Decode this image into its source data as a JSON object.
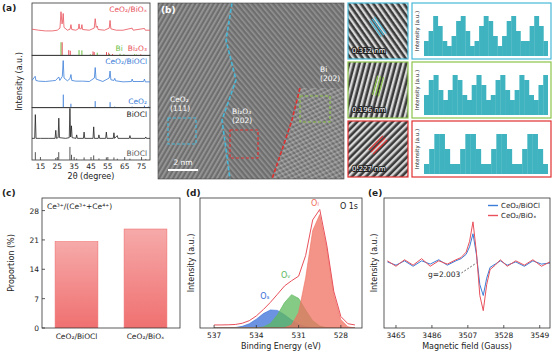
{
  "chart_data": [
    {
      "type": "line",
      "panel_label": "(a)",
      "x_label": "2θ (degree)",
      "y_label": "Intensity (a.u.)",
      "xlim": [
        10,
        80
      ],
      "xticks": [
        15,
        25,
        35,
        45,
        55,
        65,
        75
      ],
      "tick_labels": "x",
      "stacks": [
        {
          "ylim": [
            -50,
            100
          ],
          "y2lim": [
            0,
            400
          ],
          "series": [
            {
              "name": "CeO₂/BiOₓ",
              "color": "#e8505b",
              "x": [
                10,
                14,
                18,
                22,
                25,
                26.6,
                27.2,
                27.8,
                28.1,
                28.5,
                29,
                31,
                32.6,
                33.1,
                33.6,
                36,
                37.5,
                37.9,
                38.3,
                39.2,
                39.6,
                40,
                44,
                46.9,
                47.5,
                48.1,
                48.7,
                49.2,
                53,
                55.8,
                56.3,
                56.8,
                60,
                64,
                69.4,
                70,
                76.7,
                77.2,
                80
              ],
              "values": [
                25,
                22,
                20,
                20,
                22,
                28,
                75,
                40,
                45,
                70,
                30,
                22,
                25,
                38,
                24,
                22,
                26,
                40,
                26,
                26,
                38,
                24,
                22,
                28,
                55,
                30,
                34,
                24,
                22,
                28,
                50,
                26,
                22,
                22,
                28,
                22,
                27,
                22,
                22
              ]
            },
            {
              "name": "Bi",
              "type": "stick",
              "axis": "y2",
              "color": "#6cbf3f",
              "x": [
                27.2,
                37.9,
                39.6,
                44.6,
                46.0,
                48.7,
                56.0,
                62.2,
                64.5,
                70.8,
                71.9
              ],
              "values": [
                100,
                40,
                38,
                8,
                6,
                20,
                10,
                12,
                8,
                8,
                6
              ]
            },
            {
              "name": "Bi₂O₃",
              "type": "stick",
              "axis": "y2",
              "color": "#e8505b",
              "x": [
                27.9,
                31.8,
                32.7,
                46.2,
                46.9,
                54.2,
                55.5,
                57.8,
                74.5
              ],
              "values": [
                100,
                40,
                35,
                30,
                25,
                25,
                20,
                10,
                8
              ]
            }
          ]
        },
        {
          "ylim": [
            -50,
            100
          ],
          "y2lim": [
            0,
            400
          ],
          "series": [
            {
              "name": "CeO₂/BiOCl",
              "color": "#3b7dd8",
              "x": [
                10,
                11.9,
                12.3,
                14,
                18,
                22,
                24,
                25.9,
                26.5,
                28,
                28.5,
                29,
                31,
                32.5,
                33.1,
                33.6,
                36,
                40,
                44,
                47,
                47.5,
                48,
                52,
                55.8,
                56.3,
                56.8,
                58.6,
                59.1,
                59.6,
                64,
                69,
                69.4,
                69.9,
                76.2,
                76.7,
                77.2,
                80
              ],
              "values": [
                28,
                40,
                28,
                26,
                25,
                27,
                28,
                38,
                28,
                40,
                85,
                35,
                27,
                33,
                45,
                28,
                26,
                26,
                25,
                35,
                65,
                32,
                25,
                35,
                55,
                30,
                28,
                34,
                27,
                24,
                25,
                32,
                25,
                25,
                32,
                24,
                24
              ]
            },
            {
              "name": "CeO₂",
              "type": "stick",
              "axis": "y2",
              "color": "#3b7dd8",
              "x": [
                28.55,
                33.08,
                47.48,
                56.33,
                59.09,
                69.42,
                76.7,
                79.07
              ],
              "values": [
                100,
                30,
                50,
                42,
                8,
                8,
                15,
                8
              ]
            }
          ]
        },
        {
          "ylim": [
            -50,
            100
          ],
          "y2lim": [
            0,
            400
          ],
          "series": [
            {
              "name": "BiOCl",
              "color": "#222222",
              "x": [
                10,
                11.6,
                11.98,
                12.4,
                15,
                20,
                23.7,
                24.1,
                24.5,
                25.5,
                25.9,
                26.3,
                30,
                32.1,
                32.5,
                32.9,
                33.4,
                33.8,
                36.1,
                36.5,
                36.9,
                40.5,
                40.9,
                41.3,
                46.2,
                46.6,
                47,
                49.3,
                49.7,
                50.1,
                53.7,
                54.1,
                54.5,
                58.2,
                58.6,
                59,
                60.6,
                61,
                67.7,
                68.1,
                68.5,
                77.1,
                77.5,
                77.9,
                80
              ],
              "values": [
                12,
                12,
                80,
                12,
                12,
                12,
                12,
                35,
                12,
                14,
                70,
                14,
                12,
                14,
                98,
                16,
                48,
                14,
                12,
                22,
                12,
                12,
                30,
                12,
                12,
                45,
                12,
                12,
                22,
                12,
                12,
                30,
                12,
                12,
                28,
                12,
                20,
                12,
                12,
                20,
                12,
                12,
                16,
                12,
                12
              ]
            },
            {
              "name": "BiOCl",
              "type": "stick",
              "axis": "y2",
              "color": "#555555",
              "x": [
                11.98,
                24.1,
                25.86,
                32.5,
                33.45,
                36.5,
                40.9,
                46.6,
                49.7,
                54.1,
                58.6,
                60.6,
                68.1,
                77.5
              ],
              "values": [
                60,
                15,
                60,
                100,
                40,
                10,
                20,
                35,
                12,
                20,
                20,
                10,
                10,
                8
              ]
            }
          ]
        }
      ]
    },
    {
      "type": "bar",
      "panel_label": "(c)",
      "title": "Ce³⁺/(Ce³⁺+Ce⁴⁺)",
      "y_label": "Proportion (%)",
      "categories": [
        "CeO₂/BiOCl",
        "CeO₂/BiOₓ"
      ],
      "values": [
        20.6,
        23.6
      ],
      "color": "#f07070",
      "ylim": [
        0,
        31
      ],
      "yticks": [
        0,
        7,
        14,
        21,
        28
      ]
    },
    {
      "type": "area",
      "panel_label": "(d)",
      "title": "O 1s",
      "x_label": "Binding Energy (eV)",
      "y_label": "Intensity (a.u.)",
      "xlim": [
        538,
        526.5
      ],
      "xticks": [
        537,
        534,
        531,
        528
      ],
      "ylim": [
        0,
        85
      ],
      "tick_labels": "x",
      "x": [
        537,
        536.5,
        536,
        535.5,
        535,
        534.5,
        534,
        533.5,
        533,
        532.5,
        532,
        531.5,
        531,
        530.5,
        530,
        529.5,
        529,
        528.5,
        528,
        527.5,
        527
      ],
      "series": [
        {
          "name": "Oₛ",
          "color": "#3a6fd8",
          "values": [
            0,
            0,
            0.1,
            0.3,
            1.1,
            2.8,
            5.8,
            9.4,
            11.8,
            11.5,
            8.7,
            5.2,
            2.4,
            0.9,
            0.2,
            0,
            0,
            0,
            0,
            0,
            0
          ]
        },
        {
          "name": "Oᵥ",
          "color": "#5cb85c",
          "values": [
            0,
            0,
            0,
            0,
            0,
            0,
            0.1,
            0.7,
            3.0,
            8.6,
            16.6,
            21.8,
            19.4,
            11.7,
            4.8,
            1.3,
            0.2,
            0,
            0,
            0,
            0
          ]
        },
        {
          "name": "Oₗ",
          "color": "#f07060",
          "values": [
            0,
            0,
            0,
            0,
            0,
            0,
            0,
            0,
            0,
            0,
            0.2,
            1.9,
            10.1,
            32.8,
            63.7,
            74.2,
            52,
            21.8,
            5.5,
            0.8,
            0
          ]
        },
        {
          "type": "line",
          "color": "#e8505b",
          "values": [
            2,
            2,
            2.1,
            2.3,
            3.1,
            4.8,
            7.9,
            12.1,
            16.8,
            22.1,
            27.5,
            30.9,
            33.9,
            47.4,
            70.7,
            77.5,
            54.2,
            23.8,
            7.5,
            2.8,
            2
          ]
        }
      ]
    },
    {
      "type": "line",
      "panel_label": "(e)",
      "x_label": "Magnetic field (Gauss)",
      "y_label": "Intensity (a.u.)",
      "xlim": [
        3458,
        3555
      ],
      "xticks": [
        3465,
        3486,
        3507,
        3528,
        3549
      ],
      "ylim": [
        -60,
        60
      ],
      "tick_labels": "x",
      "legend": "upper right",
      "x": [
        3460,
        3465,
        3470,
        3475,
        3480,
        3485,
        3490,
        3495,
        3500,
        3503,
        3506,
        3508,
        3510,
        3512,
        3514,
        3516,
        3518,
        3520,
        3523,
        3526,
        3530,
        3535,
        3540,
        3545,
        3550,
        3555
      ],
      "series": [
        {
          "name": "CeO₂/BiOCl",
          "color": "#3b7dd8",
          "values": [
            1,
            -2,
            2,
            -3,
            2,
            -1,
            3,
            -2,
            2,
            4,
            8,
            15,
            27,
            8,
            -20,
            -30,
            -14,
            -4,
            -1,
            2,
            -2,
            1,
            -3,
            2,
            -1,
            0
          ]
        },
        {
          "name": "CeO₂/BiOₓ",
          "color": "#e8505b",
          "values": [
            2,
            -3,
            3,
            -2,
            4,
            -3,
            2,
            -1,
            3,
            5,
            10,
            20,
            38,
            10,
            -30,
            -44,
            -20,
            -6,
            -2,
            3,
            -3,
            2,
            -2,
            3,
            -3,
            1
          ]
        }
      ],
      "annotations": [
        {
          "text": "g=2.003",
          "x": 3512
        }
      ]
    },
    {
      "type": "line",
      "line_style": "steps",
      "y_label": "Intensity (a.u.)",
      "ylim": [
        0,
        10
      ],
      "tick_labels": false,
      "color": "#3fb3bf",
      "values": [
        3,
        5,
        8,
        6,
        3,
        2,
        4,
        7,
        8,
        5,
        2,
        3,
        6,
        8,
        7,
        4,
        2,
        4,
        7,
        8,
        5,
        3,
        3,
        6,
        8,
        6,
        3
      ]
    },
    {
      "type": "line",
      "line_style": "steps",
      "y_label": "Intensity (a.u.)",
      "ylim": [
        0,
        10
      ],
      "tick_labels": false,
      "color": "#3fb3bf",
      "values": [
        4,
        7,
        8,
        5,
        3,
        5,
        8,
        7,
        4,
        3,
        6,
        8,
        6,
        3,
        4,
        7,
        8,
        5,
        3,
        5,
        8,
        7,
        4,
        3,
        6,
        8
      ]
    },
    {
      "type": "line",
      "line_style": "steps",
      "y_label": "Intensity (a.u.)",
      "ylim": [
        0,
        10
      ],
      "tick_labels": false,
      "color": "#3fb3bf",
      "values": [
        2,
        5,
        8,
        8,
        5,
        2,
        2,
        5,
        8,
        8,
        5,
        2,
        2,
        5,
        8,
        8,
        5,
        2,
        2,
        5,
        8,
        8,
        5,
        2
      ]
    }
  ],
  "micrograph": {
    "panel_label": "(b)",
    "scale_bar": "2 nm",
    "regions": [
      {
        "lines": [
          "CeO₂",
          "(111)"
        ],
        "color": "#46b8d8"
      },
      {
        "lines": [
          "Bi₂O₃",
          "(202)"
        ],
        "color": "#e03030"
      },
      {
        "lines": [
          "Bi",
          "(202)"
        ],
        "color": "#8bc34a"
      }
    ],
    "insets": [
      {
        "label": "0.312 nm",
        "color": "#46b8d8"
      },
      {
        "label": "0.196 nm",
        "color": "#8bc34a"
      },
      {
        "label": "0.227 nm",
        "color": "#e03030"
      }
    ]
  }
}
